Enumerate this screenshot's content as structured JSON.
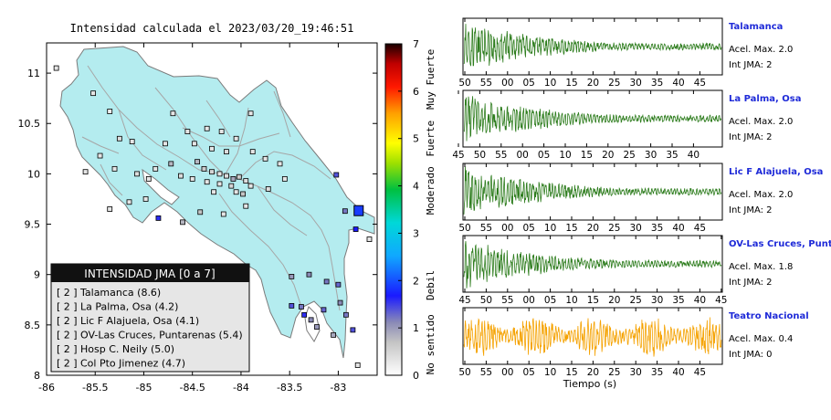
{
  "map": {
    "title": "Intensidad calculada el 2023/03/20_19:46:51",
    "x_ticks": [
      "-86",
      "-85.5",
      "-85",
      "-84.5",
      "-84",
      "-83.5",
      "-83"
    ],
    "y_ticks": [
      "11",
      "10.5",
      "10",
      "9.5",
      "9",
      "8.5",
      "8"
    ],
    "colors": {
      "land": "#b4ecef",
      "border": "#7a7a7a",
      "road": "#a6a6a6"
    }
  },
  "legend": {
    "title": "INTENSIDAD JMA [0 a 7]",
    "items": [
      {
        "jma": "[ 2 ]",
        "label": "Talamanca (8.6)"
      },
      {
        "jma": "[ 2 ]",
        "label": "La Palma, Osa (4.2)"
      },
      {
        "jma": "[ 2 ]",
        "label": "Lic F Alajuela, Osa (4.1)"
      },
      {
        "jma": "[ 2 ]",
        "label": "OV-Las Cruces, Puntarenas (5.4)"
      },
      {
        "jma": "[ 2 ]",
        "label": "Hosp C. Neily (5.0)"
      },
      {
        "jma": "[ 2 ]",
        "label": "Col Pto Jimenez (4.7)"
      }
    ]
  },
  "colorbar": {
    "ticks": [
      "0",
      "1",
      "2",
      "3",
      "4",
      "5",
      "6",
      "7"
    ],
    "labels": [
      "No sentido",
      "Debil",
      "Moderado",
      "Fuerte",
      "Muy Fuerte"
    ]
  },
  "chart_data": [
    {
      "type": "scatter",
      "title": "Intensidad calculada el 2023/03/20_19:46:51",
      "xlim": [
        -86,
        -82.6
      ],
      "ylim": [
        8,
        11.3
      ],
      "x_ticks": [
        -86,
        -85.5,
        -85,
        -84.5,
        -84,
        -83.5,
        -83
      ],
      "y_ticks": [
        8,
        8.5,
        9,
        9.5,
        10,
        10.5,
        11
      ],
      "colorbar": {
        "range": [
          0,
          7
        ]
      },
      "stations": [
        {
          "lon": -85.9,
          "lat": 11.05,
          "i": 0.3
        },
        {
          "lon": -85.35,
          "lat": 10.62,
          "i": 0.2
        },
        {
          "lon": -85.25,
          "lat": 10.35,
          "i": 0.4
        },
        {
          "lon": -85.12,
          "lat": 10.32,
          "i": 0.3
        },
        {
          "lon": -85.45,
          "lat": 10.18,
          "i": 0.3
        },
        {
          "lon": -85.6,
          "lat": 10.02,
          "i": 0.3
        },
        {
          "lon": -85.3,
          "lat": 10.05,
          "i": 0.3
        },
        {
          "lon": -85.07,
          "lat": 10.0,
          "i": 0.4
        },
        {
          "lon": -84.95,
          "lat": 9.95,
          "i": 0.3
        },
        {
          "lon": -84.88,
          "lat": 10.05,
          "i": 0.3
        },
        {
          "lon": -84.72,
          "lat": 10.1,
          "i": 0.8
        },
        {
          "lon": -84.62,
          "lat": 9.98,
          "i": 0.4
        },
        {
          "lon": -85.15,
          "lat": 9.72,
          "i": 0.3
        },
        {
          "lon": -85.35,
          "lat": 9.65,
          "i": 0.3
        },
        {
          "lon": -84.98,
          "lat": 9.75,
          "i": 0.3
        },
        {
          "lon": -84.55,
          "lat": 10.42,
          "i": 0.3
        },
        {
          "lon": -84.48,
          "lat": 10.3,
          "i": 0.3
        },
        {
          "lon": -84.35,
          "lat": 10.45,
          "i": 0.3
        },
        {
          "lon": -84.2,
          "lat": 10.42,
          "i": 0.3
        },
        {
          "lon": -84.05,
          "lat": 10.35,
          "i": 0.3
        },
        {
          "lon": -84.15,
          "lat": 10.22,
          "i": 0.4
        },
        {
          "lon": -84.3,
          "lat": 10.25,
          "i": 0.3
        },
        {
          "lon": -84.45,
          "lat": 10.12,
          "i": 0.8
        },
        {
          "lon": -84.38,
          "lat": 10.05,
          "i": 0.6
        },
        {
          "lon": -84.3,
          "lat": 10.02,
          "i": 0.5
        },
        {
          "lon": -84.22,
          "lat": 10.0,
          "i": 0.3
        },
        {
          "lon": -84.15,
          "lat": 9.98,
          "i": 0.4
        },
        {
          "lon": -84.08,
          "lat": 9.95,
          "i": 0.9
        },
        {
          "lon": -84.02,
          "lat": 9.97,
          "i": 0.6
        },
        {
          "lon": -83.95,
          "lat": 9.93,
          "i": 0.4
        },
        {
          "lon": -83.9,
          "lat": 9.88,
          "i": 0.3
        },
        {
          "lon": -84.1,
          "lat": 9.88,
          "i": 0.5
        },
        {
          "lon": -84.05,
          "lat": 9.82,
          "i": 0.3
        },
        {
          "lon": -83.98,
          "lat": 9.8,
          "i": 0.7
        },
        {
          "lon": -84.22,
          "lat": 9.9,
          "i": 0.3
        },
        {
          "lon": -84.35,
          "lat": 9.92,
          "i": 0.3
        },
        {
          "lon": -84.5,
          "lat": 9.95,
          "i": 0.3
        },
        {
          "lon": -84.28,
          "lat": 9.82,
          "i": 0.3
        },
        {
          "lon": -83.88,
          "lat": 10.22,
          "i": 0.3
        },
        {
          "lon": -83.75,
          "lat": 10.15,
          "i": 0.3
        },
        {
          "lon": -83.6,
          "lat": 10.1,
          "i": 0.3
        },
        {
          "lon": -83.72,
          "lat": 9.85,
          "i": 0.4
        },
        {
          "lon": -83.55,
          "lat": 9.95,
          "i": 0.3
        },
        {
          "lon": -84.42,
          "lat": 9.62,
          "i": 0.7
        },
        {
          "lon": -84.18,
          "lat": 9.6,
          "i": 0.3
        },
        {
          "lon": -83.95,
          "lat": 9.68,
          "i": 0.3
        },
        {
          "lon": -84.6,
          "lat": 9.52,
          "i": 0.8
        },
        {
          "lon": -84.85,
          "lat": 9.56,
          "i": 1.6
        },
        {
          "lon": -83.02,
          "lat": 9.99,
          "i": 1.4
        },
        {
          "lon": -82.93,
          "lat": 9.63,
          "i": 1.2
        },
        {
          "lon": -82.82,
          "lat": 9.45,
          "i": 1.7
        },
        {
          "lon": -82.68,
          "lat": 9.35,
          "i": 0.3
        },
        {
          "lon": -83.48,
          "lat": 8.98,
          "i": 1.0
        },
        {
          "lon": -83.3,
          "lat": 9.0,
          "i": 1.1
        },
        {
          "lon": -83.12,
          "lat": 8.93,
          "i": 1.2
        },
        {
          "lon": -83.0,
          "lat": 8.9,
          "i": 1.3
        },
        {
          "lon": -83.38,
          "lat": 8.68,
          "i": 1.2
        },
        {
          "lon": -83.48,
          "lat": 8.69,
          "i": 1.4
        },
        {
          "lon": -83.35,
          "lat": 8.6,
          "i": 1.6
        },
        {
          "lon": -83.28,
          "lat": 8.55,
          "i": 1.1
        },
        {
          "lon": -83.15,
          "lat": 8.65,
          "i": 1.3
        },
        {
          "lon": -82.98,
          "lat": 8.72,
          "i": 1.1
        },
        {
          "lon": -82.92,
          "lat": 8.6,
          "i": 1.2
        },
        {
          "lon": -83.22,
          "lat": 8.48,
          "i": 1.0
        },
        {
          "lon": -83.05,
          "lat": 8.4,
          "i": 0.9
        },
        {
          "lon": -82.85,
          "lat": 8.45,
          "i": 1.4
        },
        {
          "lon": -83.9,
          "lat": 10.6,
          "i": 0.3
        },
        {
          "lon": -84.7,
          "lat": 10.6,
          "i": 0.3
        },
        {
          "lon": -85.52,
          "lat": 10.8,
          "i": 0.3
        },
        {
          "lon": -84.78,
          "lat": 10.3,
          "i": 0.3
        },
        {
          "lon": -82.8,
          "lat": 8.1,
          "i": 0.3
        }
      ],
      "large_station": {
        "lon": -82.79,
        "lat": 9.63,
        "i": 1.9
      }
    },
    {
      "type": "line",
      "xlabel": "Tiempo (s)",
      "series": [
        {
          "name": "Talamanca",
          "peak": "Acel. Max. 2.0",
          "jma": "Int JMA: 2",
          "color": "#2e7d1e",
          "ticks": [
            "50",
            "55",
            "00",
            "05",
            "10",
            "15",
            "20",
            "25",
            "30",
            "35",
            "40",
            "45"
          ]
        },
        {
          "name": "La Palma, Osa",
          "peak": "Acel. Max. 2.0",
          "jma": "Int JMA: 2",
          "color": "#2e7d1e",
          "ticks": [
            "45",
            "50",
            "55",
            "00",
            "05",
            "10",
            "15",
            "20",
            "25",
            "30",
            "35",
            "40"
          ]
        },
        {
          "name": "Lic F Alajuela, Osa",
          "peak": "Acel. Max. 2.0",
          "jma": "Int JMA: 2",
          "color": "#2e7d1e",
          "ticks": [
            "50",
            "55",
            "00",
            "05",
            "10",
            "15",
            "20",
            "25",
            "30",
            "35",
            "40",
            "45"
          ]
        },
        {
          "name": "OV-Las Cruces, Puntar",
          "peak": "Acel. Max. 1.8",
          "jma": "Int JMA: 2",
          "color": "#2e7d1e",
          "ticks": [
            "45",
            "50",
            "55",
            "00",
            "05",
            "10",
            "15",
            "20",
            "25",
            "30",
            "35",
            "40",
            "45"
          ]
        },
        {
          "name": "Teatro Nacional",
          "peak": "Acel. Max. 0.4",
          "jma": "Int JMA: 0",
          "color": "#f5a200",
          "ticks": [
            "50",
            "55",
            "00",
            "05",
            "10",
            "15",
            "20",
            "25",
            "30",
            "35",
            "40",
            "45"
          ]
        }
      ]
    }
  ]
}
